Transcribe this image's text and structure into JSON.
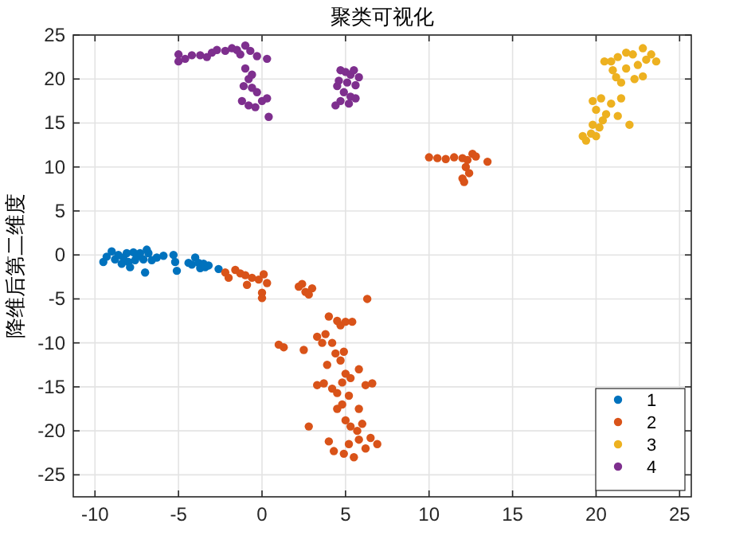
{
  "chart_data": {
    "type": "scatter",
    "title": "聚类可视化",
    "ylabel": "降维后第二维度",
    "xlim": [
      -11.3,
      25.7
    ],
    "ylim": [
      -27.5,
      25
    ],
    "xticks": [
      -10,
      -5,
      0,
      5,
      10,
      15,
      20,
      25
    ],
    "yticks": [
      -25,
      -20,
      -15,
      -10,
      -5,
      0,
      5,
      10,
      15,
      20,
      25
    ],
    "grid": true,
    "legend": "bottom right",
    "marker": "circle",
    "series": [
      {
        "name": "1",
        "color": "#0072bd",
        "x": [
          -9.5,
          -9.3,
          -9,
          -8.8,
          -8.6,
          -8.4,
          -8.3,
          -8.1,
          -8,
          -7.9,
          -7.7,
          -7.6,
          -7.5,
          -7.3,
          -7.1,
          -7,
          -6.9,
          -6.8,
          -6.6,
          -6.3,
          -5.9,
          -5.3,
          -5.2,
          -5.1,
          -4.4,
          -4.2,
          -4,
          -3.8,
          -3.7,
          -3.5,
          -3.4,
          -3.2,
          -2.6
        ],
        "values": [
          -0.8,
          -0.2,
          0.4,
          -0.5,
          0,
          -1,
          -0.3,
          0.2,
          -0.8,
          -1.4,
          0.3,
          -0.6,
          -0.2,
          0.2,
          -0.5,
          -2,
          0.6,
          0.2,
          -0.6,
          -0.3,
          -0.1,
          0,
          -0.8,
          -1.8,
          -0.9,
          -1.1,
          -0.3,
          -0.9,
          -1.5,
          -1,
          -1.4,
          -1.2,
          -1.6
        ]
      },
      {
        "name": "2",
        "color": "#d95319",
        "x": [
          -2.2,
          -2,
          -1.6,
          -1.3,
          -1,
          -0.9,
          -0.6,
          -0.2,
          0,
          0,
          0.1,
          0.3,
          2.2,
          2.4,
          2.6,
          2.8,
          3,
          6.3,
          4,
          4.5,
          4.7,
          5,
          5.4,
          3.3,
          3.6,
          3.8,
          4.2,
          4.4,
          4.7,
          4.9,
          3.9,
          1,
          1.3,
          2.5,
          3.3,
          3.7,
          4.2,
          4.5,
          4.8,
          5,
          5.3,
          5.2,
          4.5,
          4.8,
          5.8,
          6.2,
          6.6,
          5.8,
          2.8,
          5,
          5.3,
          5.7,
          6,
          4,
          4.3,
          4.9,
          5.2,
          5.5,
          5.8,
          6.2,
          6.5,
          6.9,
          10,
          10.5,
          11,
          11.5,
          12,
          12.3,
          12.6,
          12.8,
          12.2,
          12.4,
          12,
          12.1,
          13.5
        ],
        "values": [
          -2,
          -2.6,
          -1.7,
          -2.1,
          -2.3,
          -3.4,
          -2.6,
          -2.8,
          -4.3,
          -4.9,
          -2.2,
          -3.2,
          -3.6,
          -3.3,
          -4.2,
          -4.5,
          -3.8,
          -5,
          -7,
          -7.5,
          -8,
          -7.6,
          -7.6,
          -9.3,
          -10,
          -9,
          -10,
          -11.2,
          -12,
          -11,
          -12.5,
          -10.2,
          -10.5,
          -10.8,
          -14.8,
          -14.6,
          -15.2,
          -15.7,
          -14.5,
          -13.5,
          -14,
          -16,
          -17.5,
          -17,
          -17.5,
          -14.8,
          -14.6,
          -13,
          -19.5,
          -18.8,
          -19.5,
          -20,
          -19.2,
          -21.2,
          -22.3,
          -22.6,
          -21.5,
          -23,
          -21,
          -22,
          -20.8,
          -21.5,
          11.1,
          11,
          10.9,
          11.1,
          11,
          10.8,
          11.5,
          11.2,
          10,
          9.3,
          8.7,
          8.3,
          10.6
        ]
      },
      {
        "name": "3",
        "color": "#edb120",
        "x": [
          19.2,
          19.4,
          19.7,
          20,
          20.2,
          19.8,
          20.4,
          20.6,
          20,
          19.8,
          20.3,
          20.9,
          21.5,
          21.3,
          22,
          20.5,
          21,
          21.2,
          21.5,
          21.3,
          21.8,
          22.2,
          22.5,
          22.8,
          23,
          23.3,
          23.6,
          22.3,
          22.8,
          21.8,
          20.9
        ],
        "values": [
          13.5,
          13,
          13.8,
          13.5,
          14.5,
          14.8,
          15.3,
          16,
          16.5,
          17.5,
          17.8,
          17.2,
          17.8,
          15.8,
          14.8,
          22,
          21,
          20.2,
          19.6,
          22.5,
          21.2,
          22.8,
          21.6,
          23.5,
          22.2,
          22.8,
          22,
          20,
          20.3,
          23,
          22
        ]
      },
      {
        "name": "4",
        "color": "#7e2f8e",
        "x": [
          -5,
          -5,
          -4.6,
          -4.2,
          -3.7,
          -3.3,
          -3,
          -2.7,
          -2.2,
          -1.8,
          -1.5,
          -1.3,
          -1,
          -0.7,
          -0.3,
          0.3,
          -1,
          -0.8,
          -0.6,
          -1.1,
          -0.6,
          -0.3,
          -1.2,
          -0.8,
          -0.4,
          0,
          0.3,
          0.4,
          4.7,
          5,
          5.3,
          5.5,
          5.8,
          5.6,
          5.1,
          4.5,
          4.9,
          5.3,
          4.7,
          4.4,
          5.2,
          5.6,
          4.6
        ],
        "values": [
          22.8,
          22,
          22.3,
          22.7,
          22.7,
          22.5,
          23,
          23.3,
          23.2,
          23.5,
          23.3,
          22.8,
          23.8,
          23.2,
          22.6,
          22.3,
          21.2,
          20,
          20.5,
          19.2,
          19,
          18.5,
          17.5,
          17,
          16.8,
          17.5,
          17.8,
          15.7,
          21,
          20.8,
          20.5,
          21,
          20.2,
          19.3,
          19.6,
          19.2,
          18.5,
          18,
          17.5,
          17,
          17.2,
          17.8,
          19.8
        ]
      }
    ]
  }
}
